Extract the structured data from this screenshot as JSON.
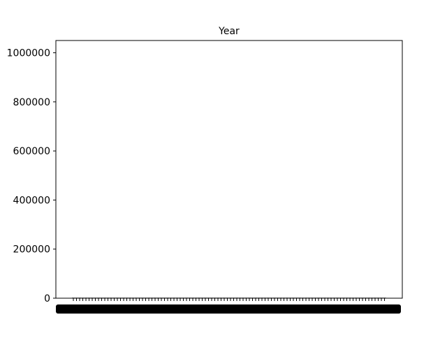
{
  "chart_data": {
    "type": "bar",
    "title": "Year",
    "xlabel": "",
    "ylabel": "",
    "ylim": [
      0,
      1050000
    ],
    "yticks": [
      0,
      200000,
      400000,
      600000,
      800000,
      1000000
    ],
    "ytick_labels": [
      "0",
      "200000",
      "400000",
      "600000",
      "800000",
      "1000000"
    ],
    "x_tick_labels_overlapping": true,
    "bar_count_estimate": 100,
    "bar_value_estimate": 2000,
    "grid": false,
    "legend": null,
    "bar_color": "#000000"
  }
}
